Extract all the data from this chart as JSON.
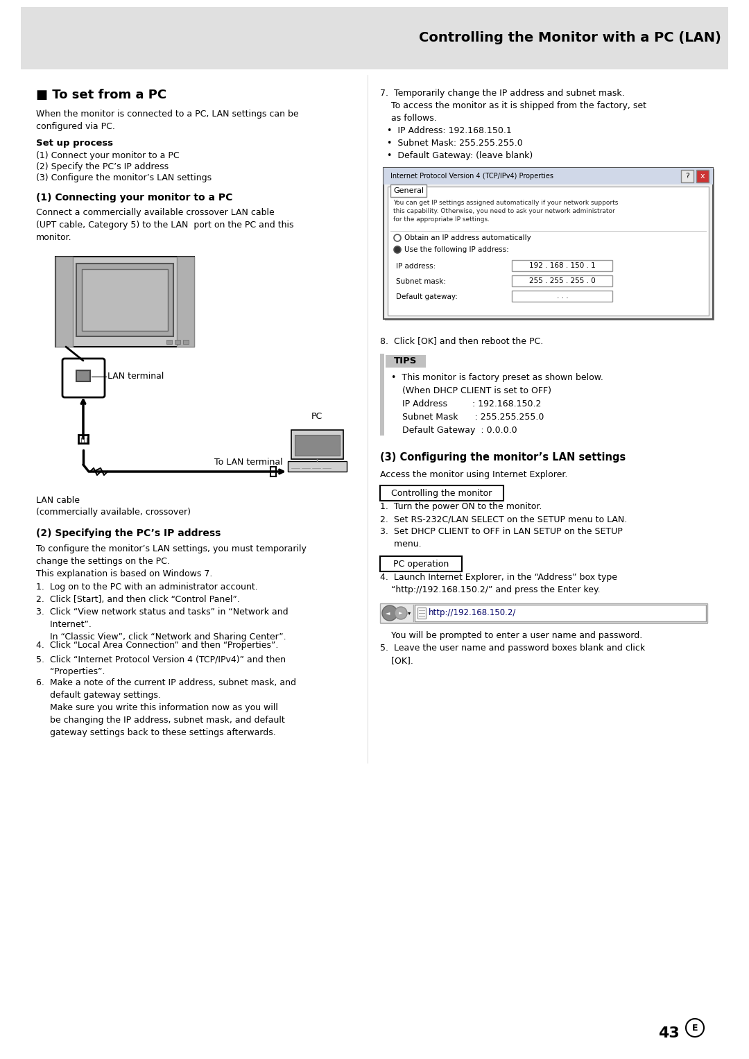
{
  "title_header": "Controlling the Monitor with a PC (LAN)",
  "header_bg": "#e0e0e0",
  "page_bg": "#ffffff",
  "section_title": "■ To set from a PC",
  "intro_text": "When the monitor is connected to a PC, LAN settings can be\nconfigured via PC.",
  "setup_heading": "Set up process",
  "setup_steps": [
    "(1) Connect your monitor to a PC",
    "(2) Specify the PC’s IP address",
    "(3) Configure the monitor’s LAN settings"
  ],
  "connect_heading": "(1) Connecting your monitor to a PC",
  "connect_text": "Connect a commercially available crossover LAN cable\n(UPT cable, Category 5) to the LAN  port on the PC and this\nmonitor.",
  "lan_terminal_label": "LAN terminal",
  "to_lan_label": "To LAN terminal",
  "pc_label": "PC",
  "lan_cable_label": "LAN cable\n(commercially available, crossover)",
  "specify_heading": "(2) Specifying the PC’s IP address",
  "specify_intro": "To configure the monitor’s LAN settings, you must temporarily\nchange the settings on the PC.\nThis explanation is based on Windows 7.",
  "specify_steps": [
    "1.  Log on to the PC with an administrator account.",
    "2.  Click [Start], and then click “Control Panel”.",
    "3.  Click “View network status and tasks” in “Network and\n     Internet”.\n     In “Classic View”, click “Network and Sharing Center”.",
    "4.  Click “Local Area Connection” and then “Properties”.",
    "5.  Click “Internet Protocol Version 4 (TCP/IPv4)” and then\n     “Properties”.",
    "6.  Make a note of the current IP address, subnet mask, and\n     default gateway settings.\n     Make sure you write this information now as you will\n     be changing the IP address, subnet mask, and default\n     gateway settings back to these settings afterwards."
  ],
  "step7_line1": "7.  Temporarily change the IP address and subnet mask.",
  "step7_line2": "    To access the monitor as it is shipped from the factory, set",
  "step7_line3": "    as follows.",
  "step7_bullets": [
    "•  IP Address: 192.168.150.1",
    "•  Subnet Mask: 255.255.255.0",
    "•  Default Gateway: (leave blank)"
  ],
  "dlg_title": "Internet Protocol Version 4 (TCP/IPv4) Properties",
  "dlg_tab": "General",
  "dlg_body": "You can get IP settings assigned automatically if your network supports\nthis capability. Otherwise, you need to ask your network administrator\nfor the appropriate IP settings.",
  "dlg_radio1": "Obtain an IP address automatically",
  "dlg_radio2": "Use the following IP address:",
  "dlg_fields": [
    [
      "IP address:",
      "192 . 168 . 150 . 1"
    ],
    [
      "Subnet mask:",
      "255 . 255 . 255 . 0"
    ],
    [
      "Default gateway:",
      ". . ."
    ]
  ],
  "step8_text": "8.  Click [OK] and then reboot the PC.",
  "tips_heading": "TIPS",
  "tips_bg": "#c0c0c0",
  "tips_text": "•  This monitor is factory preset as shown below.\n    (When DHCP CLIENT is set to OFF)\n    IP Address         : 192.168.150.2\n    Subnet Mask      : 255.255.255.0\n    Default Gateway  : 0.0.0.0",
  "config_heading": "(3) Configuring the monitor’s LAN settings",
  "config_text": "Access the monitor using Internet Explorer.",
  "control_label": "Controlling the monitor",
  "control_steps": [
    "1.  Turn the power ON to the monitor.",
    "2.  Set RS-232C/LAN SELECT on the SETUP menu to LAN.",
    "3.  Set DHCP CLIENT to OFF in LAN SETUP on the SETUP\n     menu."
  ],
  "pc_op_label": "PC operation",
  "step4_text": "4.  Launch Internet Explorer, in the “Address” box type\n    “http://192.168.150.2/” and press the Enter key.",
  "url_text": "http://192.168.150.2/",
  "step5a_text": "    You will be prompted to enter a user name and password.",
  "step5b_text": "5.  Leave the user name and password boxes blank and click\n    [OK].",
  "page_num": "43"
}
